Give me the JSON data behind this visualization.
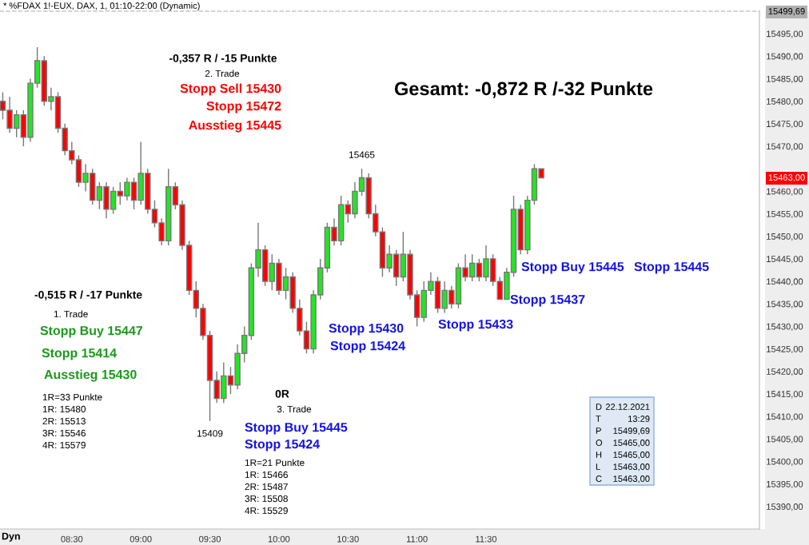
{
  "chart_data": {
    "type": "candlestick",
    "title": "* %FDAX 1!-EUX, DAX, 1, 01:10-22:00 (Dynamic)",
    "x": [
      8,
      8.05,
      8.1,
      8.15,
      8.2,
      8.25,
      8.3,
      8.35,
      8.4,
      8.45,
      8.5,
      8.55,
      8.6,
      8.65,
      8.7,
      8.75,
      8.8,
      8.85,
      8.9,
      8.95,
      9,
      9.05,
      9.1,
      9.15,
      9.2,
      9.25,
      9.3,
      9.35,
      9.4,
      9.45,
      9.5,
      9.55,
      9.6,
      9.65,
      9.7,
      9.75,
      9.8,
      9.85,
      9.9,
      9.95,
      10,
      10.05,
      10.1,
      10.15,
      10.2,
      10.25,
      10.3,
      10.35,
      10.4,
      10.45,
      10.5,
      10.55,
      10.6,
      10.65,
      10.7,
      10.75,
      10.8,
      10.85,
      10.9,
      10.95,
      11,
      11.05,
      11.1,
      11.15,
      11.2,
      11.25,
      11.3,
      11.35,
      11.4,
      11.45,
      11.5,
      11.55,
      11.6,
      11.65,
      11.7,
      11.75,
      11.8,
      11.85,
      11.9
    ],
    "ohlc": [
      [
        15480,
        15482,
        15476,
        15478
      ],
      [
        15478,
        15481,
        15473,
        15474
      ],
      [
        15474,
        15478,
        15472,
        15477
      ],
      [
        15477,
        15478,
        15470,
        15472
      ],
      [
        15472,
        15485,
        15471,
        15484
      ],
      [
        15484,
        15492,
        15483,
        15489
      ],
      [
        15489,
        15490,
        15479,
        15480
      ],
      [
        15480,
        15483,
        15478,
        15481
      ],
      [
        15481,
        15482,
        15473,
        15474
      ],
      [
        15474,
        15475,
        15468,
        15469
      ],
      [
        15469,
        15471,
        15466,
        15467
      ],
      [
        15467,
        15468,
        15461,
        15462
      ],
      [
        15462,
        15466,
        15460,
        15464
      ],
      [
        15464,
        15465,
        15457,
        15458
      ],
      [
        15458,
        15462,
        15456,
        15461
      ],
      [
        15461,
        15462,
        15454,
        15456
      ],
      [
        15456,
        15461,
        15455,
        15460
      ],
      [
        15460,
        15462,
        15457,
        15459
      ],
      [
        15459,
        15463,
        15458,
        15462
      ],
      [
        15462,
        15463,
        15456,
        15458
      ],
      [
        15458,
        15471,
        15457,
        15464
      ],
      [
        15464,
        15465,
        15455,
        15456
      ],
      [
        15456,
        15458,
        15452,
        15453
      ],
      [
        15453,
        15454,
        15448,
        15449
      ],
      [
        15449,
        15465,
        15448,
        15461
      ],
      [
        15461,
        15462,
        15456,
        15457
      ],
      [
        15457,
        15458,
        15447,
        15448
      ],
      [
        15448,
        15449,
        15437,
        15438
      ],
      [
        15438,
        15440,
        15432,
        15434
      ],
      [
        15434,
        15435,
        15427,
        15428
      ],
      [
        15428,
        15429,
        15409,
        15418
      ],
      [
        15418,
        15420,
        15413,
        15414
      ],
      [
        15414,
        15422,
        15413,
        15419
      ],
      [
        15419,
        15421,
        15415,
        15417
      ],
      [
        15417,
        15426,
        15416,
        15424
      ],
      [
        15424,
        15430,
        15422,
        15428
      ],
      [
        15428,
        15444,
        15427,
        15443
      ],
      [
        15443,
        15453,
        15441,
        15447
      ],
      [
        15447,
        15448,
        15439,
        15440
      ],
      [
        15440,
        15446,
        15438,
        15444
      ],
      [
        15444,
        15445,
        15437,
        15438
      ],
      [
        15438,
        15443,
        15436,
        15441
      ],
      [
        15441,
        15442,
        15433,
        15434
      ],
      [
        15434,
        15436,
        15428,
        15429
      ],
      [
        15429,
        15431,
        15424,
        15425
      ],
      [
        15425,
        15438,
        15424,
        15437
      ],
      [
        15437,
        15445,
        15436,
        15443
      ],
      [
        15443,
        15453,
        15442,
        15452
      ],
      [
        15452,
        15454,
        15448,
        15449
      ],
      [
        15449,
        15459,
        15448,
        15457
      ],
      [
        15457,
        15458,
        15453,
        15455
      ],
      [
        15455,
        15462,
        15454,
        15460
      ],
      [
        15460,
        15465,
        15459,
        15463
      ],
      [
        15463,
        15464,
        15454,
        15455
      ],
      [
        15455,
        15457,
        15450,
        15451
      ],
      [
        15451,
        15452,
        15441,
        15443
      ],
      [
        15443,
        15448,
        15442,
        15446
      ],
      [
        15446,
        15447,
        15439,
        15441
      ],
      [
        15441,
        15451,
        15440,
        15446
      ],
      [
        15446,
        15447,
        15436,
        15437
      ],
      [
        15437,
        15438,
        15430,
        15432
      ],
      [
        15432,
        15440,
        15431,
        15438
      ],
      [
        15438,
        15442,
        15437,
        15440
      ],
      [
        15440,
        15441,
        15433,
        15434
      ],
      [
        15434,
        15440,
        15433,
        15438
      ],
      [
        15438,
        15439,
        15434,
        15435
      ],
      [
        15435,
        15444,
        15434,
        15443
      ],
      [
        15443,
        15446,
        15440,
        15441
      ],
      [
        15441,
        15446,
        15440,
        15444
      ],
      [
        15444,
        15445,
        15440,
        15441
      ],
      [
        15441,
        15448,
        15440,
        15445
      ],
      [
        15445,
        15446,
        15439,
        15440
      ],
      [
        15440,
        15441,
        15436,
        15436
      ],
      [
        15436,
        15443,
        15436,
        15442
      ],
      [
        15442,
        15459,
        15441,
        15456
      ],
      [
        15456,
        15457,
        15446,
        15447
      ],
      [
        15447,
        15459,
        15446,
        15458
      ],
      [
        15458,
        15466,
        15457,
        15465
      ],
      [
        15465,
        15465,
        15463,
        15463
      ]
    ],
    "colors": [
      "#ff0000",
      "#ff0000",
      "#22e622",
      "#ff0000",
      "#22e622",
      "#22e622",
      "#ff0000",
      "#22e622",
      "#ff0000",
      "#ff0000",
      "#ff0000",
      "#ff0000",
      "#22e622",
      "#ff0000",
      "#22e622",
      "#ff0000",
      "#22e622",
      "#ff0000",
      "#22e622",
      "#ff0000",
      "#22e622",
      "#ff0000",
      "#ff0000",
      "#ff0000",
      "#22e622",
      "#ff0000",
      "#ff0000",
      "#ff0000",
      "#ff0000",
      "#ff0000",
      "#ff0000",
      "#ff0000",
      "#22e622",
      "#ff0000",
      "#22e622",
      "#22e622",
      "#22e622",
      "#22e622",
      "#ff0000",
      "#22e622",
      "#ff0000",
      "#22e622",
      "#ff0000",
      "#ff0000",
      "#ff0000",
      "#22e622",
      "#22e622",
      "#22e622",
      "#ff0000",
      "#22e622",
      "#ff0000",
      "#22e622",
      "#22e622",
      "#ff0000",
      "#ff0000",
      "#ff0000",
      "#22e622",
      "#ff0000",
      "#22e622",
      "#ff0000",
      "#ff0000",
      "#22e622",
      "#22e622",
      "#ff0000",
      "#22e622",
      "#ff0000",
      "#22e622",
      "#ff0000",
      "#22e622",
      "#ff0000",
      "#22e622",
      "#ff0000",
      "#ff0000",
      "#22e622",
      "#22e622",
      "#ff0000",
      "#22e622",
      "#22e622",
      "#ff0000"
    ],
    "xlim": [
      7.98,
      13.48
    ],
    "xticks": [
      {
        "value": 8.5,
        "label": "08:30"
      },
      {
        "value": 9,
        "label": "09:00"
      },
      {
        "value": 9.5,
        "label": "09:30"
      },
      {
        "value": 10,
        "label": "10:00"
      },
      {
        "value": 10.5,
        "label": "10:30"
      },
      {
        "value": 11,
        "label": "11:00"
      },
      {
        "value": 11.5,
        "label": "11:30"
      }
    ],
    "ylim": [
      15385,
      15500
    ],
    "yticks": [
      {
        "value": 15390,
        "label": "15390,00"
      },
      {
        "value": 15395,
        "label": "15395,00"
      },
      {
        "value": 15400,
        "label": "15400,00"
      },
      {
        "value": 15405,
        "label": "15405,00"
      },
      {
        "value": 15410,
        "label": "15410,00"
      },
      {
        "value": 15415,
        "label": "15415,00"
      },
      {
        "value": 15420,
        "label": "15420,00"
      },
      {
        "value": 15425,
        "label": "15425,00"
      },
      {
        "value": 15430,
        "label": "15430,00"
      },
      {
        "value": 15435,
        "label": "15435,00"
      },
      {
        "value": 15440,
        "label": "15440,00"
      },
      {
        "value": 15445,
        "label": "15445,00"
      },
      {
        "value": 15450,
        "label": "15450,00"
      },
      {
        "value": 15455,
        "label": "15455,00"
      },
      {
        "value": 15460,
        "label": "15460,00"
      },
      {
        "value": 15470,
        "label": "15470,00"
      },
      {
        "value": 15475,
        "label": "15475,00"
      },
      {
        "value": 15480,
        "label": "15480,00"
      },
      {
        "value": 15485,
        "label": "15485,00"
      },
      {
        "value": 15490,
        "label": "15490,00"
      },
      {
        "value": 15495,
        "label": "15495,00"
      }
    ],
    "annotations": [
      "-0,357 R / -15 Punkte",
      "2. Trade",
      "Stopp Sell 15430",
      "Stopp 15472",
      "Ausstieg 15445",
      "Gesamt: -0,872 R /-32 Punkte",
      {
        "text": "15465",
        "x": 10.6,
        "y": 15465
      },
      {
        "text": "15409",
        "x": 9.5,
        "y": 15409
      },
      "-0,515 R / -17 Punkte",
      "1. Trade",
      "Stopp Buy 15447",
      "Stopp 15414",
      "Ausstieg 15430",
      "1R=33 Punkte",
      "1R: 15480",
      "2R: 15513",
      "3R: 15546",
      "4R: 15579",
      "0R",
      "3. Trade",
      "Stopp Buy 15445",
      "Stopp 15424",
      "1R=21 Punkte",
      "1R: 15466",
      "2R: 15487",
      "3R: 15508",
      "4R: 15529",
      "Stopp 15430",
      "Stopp 15424",
      "Stopp 15433",
      "Stopp Buy 15445",
      "Stopp 15445",
      "Stopp 15437",
      "D",
      "22.12.2021",
      "T",
      "13:29",
      "P",
      "15499,69",
      "O",
      "15465,00",
      "H",
      "15465,00",
      "L",
      "15463,00",
      "C",
      "15463,00",
      "15499,69",
      "15463,00",
      "Dyn"
    ]
  }
}
